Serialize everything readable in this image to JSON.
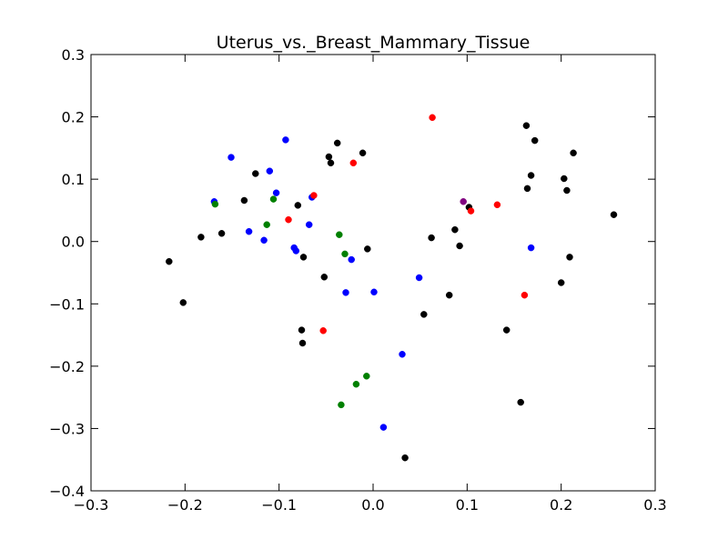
{
  "chart_data": {
    "type": "scatter",
    "title": "Uterus_vs._Breast_Mammary_Tissue",
    "xlabel": "",
    "ylabel": "",
    "xlim": [
      -0.3,
      0.3
    ],
    "ylim": [
      -0.4,
      0.3
    ],
    "xticks": [
      -0.3,
      -0.2,
      -0.1,
      0.0,
      0.1,
      0.2,
      0.3
    ],
    "yticks": [
      -0.4,
      -0.3,
      -0.2,
      -0.1,
      0.0,
      0.1,
      0.2,
      0.3
    ],
    "xtick_labels": [
      "−0.3",
      "−0.2",
      "−0.1",
      "0.0",
      "0.1",
      "0.2",
      "0.3"
    ],
    "ytick_labels": [
      "−0.4",
      "−0.3",
      "−0.2",
      "−0.1",
      "0.0",
      "0.1",
      "0.2",
      "0.3"
    ],
    "grid": false,
    "legend": "none",
    "series": [
      {
        "color": "#000000",
        "points": [
          [
            -0.217,
            -0.032
          ],
          [
            -0.202,
            -0.098
          ],
          [
            -0.183,
            0.007
          ],
          [
            -0.161,
            0.013
          ],
          [
            -0.137,
            0.066
          ],
          [
            -0.125,
            0.109
          ],
          [
            -0.08,
            0.058
          ],
          [
            -0.074,
            -0.025
          ],
          [
            -0.076,
            -0.142
          ],
          [
            -0.075,
            -0.163
          ],
          [
            -0.052,
            -0.057
          ],
          [
            -0.047,
            0.136
          ],
          [
            -0.045,
            0.126
          ],
          [
            -0.038,
            0.158
          ],
          [
            -0.011,
            0.142
          ],
          [
            -0.006,
            -0.012
          ],
          [
            0.034,
            -0.347
          ],
          [
            0.054,
            -0.117
          ],
          [
            0.062,
            0.006
          ],
          [
            0.081,
            -0.086
          ],
          [
            0.087,
            0.019
          ],
          [
            0.092,
            -0.007
          ],
          [
            0.102,
            0.055
          ],
          [
            0.142,
            -0.142
          ],
          [
            0.157,
            -0.258
          ],
          [
            0.163,
            0.186
          ],
          [
            0.164,
            0.085
          ],
          [
            0.168,
            0.106
          ],
          [
            0.172,
            0.162
          ],
          [
            0.2,
            -0.066
          ],
          [
            0.203,
            0.101
          ],
          [
            0.206,
            0.082
          ],
          [
            0.209,
            -0.025
          ],
          [
            0.213,
            0.142
          ],
          [
            0.256,
            0.043
          ]
        ]
      },
      {
        "color": "#0000ff",
        "points": [
          [
            -0.169,
            0.064
          ],
          [
            -0.151,
            0.135
          ],
          [
            -0.132,
            0.016
          ],
          [
            -0.116,
            0.002
          ],
          [
            -0.11,
            0.113
          ],
          [
            -0.103,
            0.078
          ],
          [
            -0.093,
            0.163
          ],
          [
            -0.084,
            -0.01
          ],
          [
            -0.082,
            -0.015
          ],
          [
            -0.068,
            0.027
          ],
          [
            -0.065,
            0.071
          ],
          [
            -0.029,
            -0.082
          ],
          [
            -0.023,
            -0.029
          ],
          [
            0.001,
            -0.081
          ],
          [
            0.011,
            -0.298
          ],
          [
            0.031,
            -0.181
          ],
          [
            0.049,
            -0.058
          ],
          [
            0.168,
            -0.01
          ]
        ]
      },
      {
        "color": "#008000",
        "points": [
          [
            -0.168,
            0.06
          ],
          [
            -0.113,
            0.027
          ],
          [
            -0.106,
            0.068
          ],
          [
            -0.036,
            0.011
          ],
          [
            -0.03,
            -0.02
          ],
          [
            -0.034,
            -0.262
          ],
          [
            -0.018,
            -0.229
          ],
          [
            -0.007,
            -0.216
          ]
        ]
      },
      {
        "color": "#ff0000",
        "points": [
          [
            -0.09,
            0.035
          ],
          [
            -0.063,
            0.074
          ],
          [
            -0.053,
            -0.143
          ],
          [
            -0.021,
            0.126
          ],
          [
            0.063,
            0.199
          ],
          [
            0.104,
            0.049
          ],
          [
            0.132,
            0.059
          ],
          [
            0.161,
            -0.086
          ]
        ]
      },
      {
        "color": "#800080",
        "points": [
          [
            0.096,
            0.064
          ]
        ]
      }
    ]
  }
}
